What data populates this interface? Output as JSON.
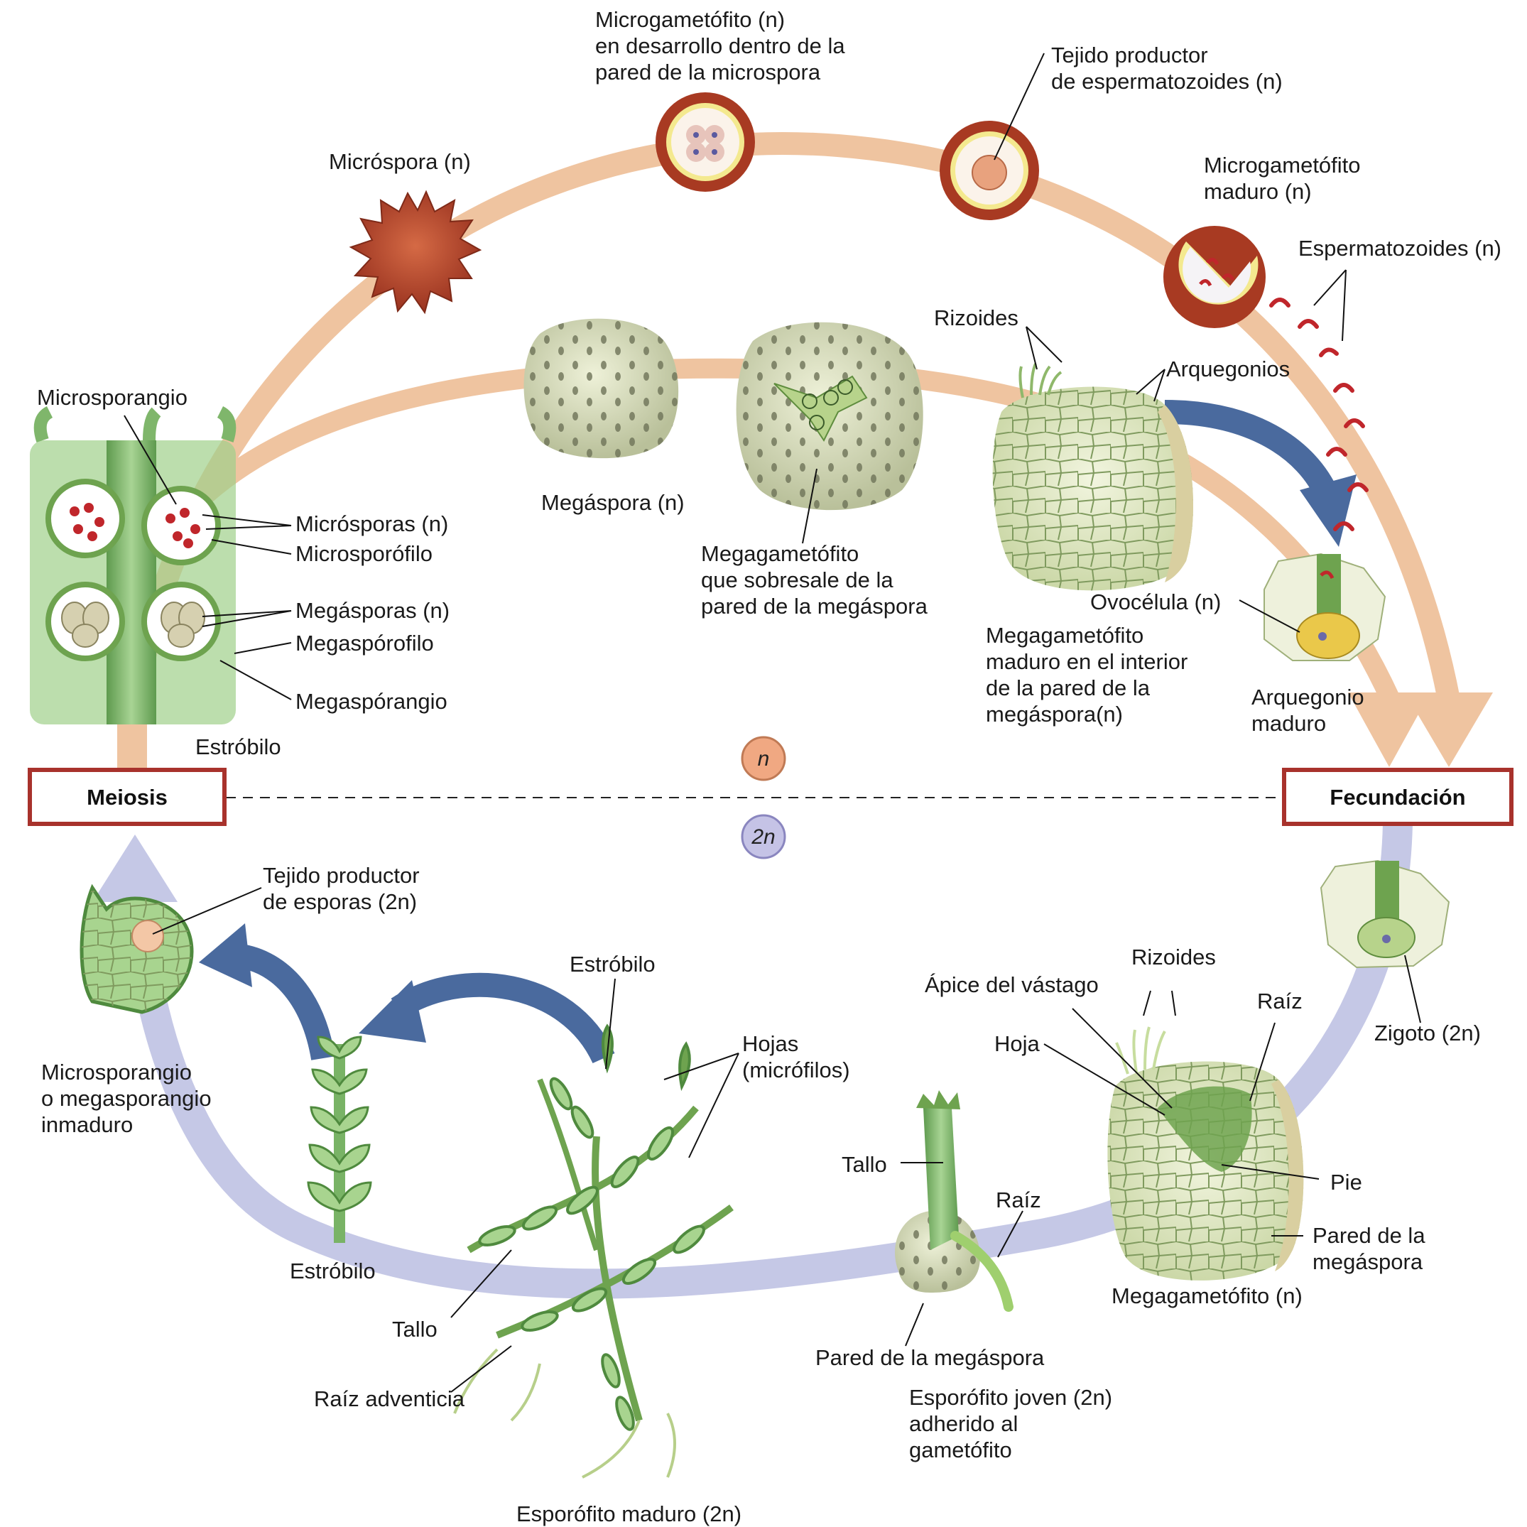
{
  "stages": {
    "meiosis": "Meiosis",
    "fecundacion": "Fecundación"
  },
  "ploidy": {
    "haploid": "n",
    "diploid": "2n"
  },
  "labels": {
    "microgametofito_desarrollo": [
      "Microgametófito (n)",
      "en desarrollo dentro de la",
      "pared de la microspora"
    ],
    "tejido_espermatozoides": [
      "Tejido productor",
      "de espermatozoides (n)"
    ],
    "microspora": "Micróspora (n)",
    "microgametofito_maduro": [
      "Microgametófito",
      "maduro (n)"
    ],
    "espermatozoides": "Espermatozoides (n)",
    "rizoides_top": "Rizoides",
    "arquegonios": "Arquegonios",
    "microsporangio": "Microsporangio",
    "microsporas": "Micrósporas (n)",
    "microsporofilo": "Microsporófilo",
    "megasporas": "Megásporas (n)",
    "megasporofilo": "Megaspórofilo",
    "megasporangio": "Megaspórangio",
    "estrobilo_top": "Estróbilo",
    "megaspora": "Megáspora (n)",
    "megagametofito_sobresale": [
      "Megagametófito",
      "que sobresale de la",
      "pared de la megáspora"
    ],
    "ovocelula": "Ovocélula (n)",
    "megagametofito_maduro": [
      "Megagametófito",
      "maduro en el interior",
      "de la pared de la",
      "megáspora(n)"
    ],
    "arquegonio_maduro": [
      "Arquegonio",
      "maduro"
    ],
    "tejido_esporas": [
      "Tejido productor",
      "de esporas (2n)"
    ],
    "microsporangio_inmaduro": [
      "Microsporangio",
      "o megasporangio",
      "inmaduro"
    ],
    "estrobilo_mid": "Estróbilo",
    "hojas": [
      "Hojas",
      "(micrófilos)"
    ],
    "estrobilo_bottom": "Estróbilo",
    "tallo_left": "Tallo",
    "raiz_adventicia": "Raíz adventicia",
    "esporofito_maduro": "Esporófito maduro (2n)",
    "rizoides_bottom": "Rizoides",
    "apice": "Ápice del vástago",
    "raiz_right": "Raíz",
    "hoja": "Hoja",
    "zigoto": "Zigoto (2n)",
    "tallo_mid": "Tallo",
    "raiz_mid": "Raíz",
    "pie": "Pie",
    "pared_megaspora_right": [
      "Pared de la",
      "megáspora"
    ],
    "megagametofito_n": "Megagametófito (n)",
    "pared_megaspora_bottom": "Pared de la megáspora",
    "esporofito_joven": [
      "Esporófito joven (2n)",
      "adherido al",
      "gametófito"
    ]
  },
  "colors": {
    "haploid_arrow": "#efc4a0",
    "diploid_arrow": "#c5c8e6",
    "curved_arrow": "#4a6a9e",
    "box_border": "#a8322c",
    "plant_green": "#8fc27a",
    "gametophyte": "#dde6bf",
    "spore_red": "#b54a2e"
  }
}
